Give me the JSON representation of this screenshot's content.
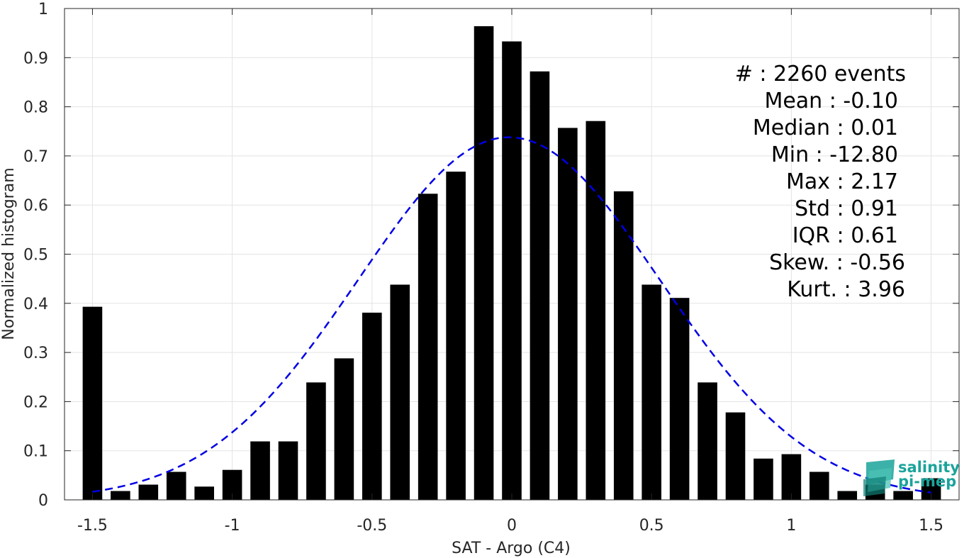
{
  "chart_data": {
    "type": "bar",
    "xlabel": "SAT - Argo (C4)",
    "ylabel": "Normalized histogram",
    "xlim": [
      -1.6,
      1.6
    ],
    "ylim": [
      0,
      1
    ],
    "xticks": [
      "-1.5",
      "-1",
      "-0.5",
      "0",
      "0.5",
      "1",
      "1.5"
    ],
    "xtick_values": [
      -1.5,
      -1,
      -0.5,
      0,
      0.5,
      1,
      1.5
    ],
    "yticks": [
      "0",
      "0.1",
      "0.2",
      "0.3",
      "0.4",
      "0.5",
      "0.6",
      "0.7",
      "0.8",
      "0.9",
      "1"
    ],
    "ytick_values": [
      0,
      0.1,
      0.2,
      0.3,
      0.4,
      0.5,
      0.6,
      0.7,
      0.8,
      0.9,
      1
    ],
    "grid": true,
    "bin_width": 0.1,
    "bar_color": "#000000",
    "bins": [
      {
        "x": -1.5,
        "value": 0.393
      },
      {
        "x": -1.4,
        "value": 0.018
      },
      {
        "x": -1.3,
        "value": 0.031
      },
      {
        "x": -1.2,
        "value": 0.057
      },
      {
        "x": -1.1,
        "value": 0.027
      },
      {
        "x": -1.0,
        "value": 0.061
      },
      {
        "x": -0.9,
        "value": 0.119
      },
      {
        "x": -0.8,
        "value": 0.119
      },
      {
        "x": -0.7,
        "value": 0.239
      },
      {
        "x": -0.6,
        "value": 0.288
      },
      {
        "x": -0.5,
        "value": 0.381
      },
      {
        "x": -0.4,
        "value": 0.438
      },
      {
        "x": -0.3,
        "value": 0.623
      },
      {
        "x": -0.2,
        "value": 0.668
      },
      {
        "x": -0.1,
        "value": 0.964
      },
      {
        "x": 0.0,
        "value": 0.933
      },
      {
        "x": 0.1,
        "value": 0.872
      },
      {
        "x": 0.2,
        "value": 0.757
      },
      {
        "x": 0.3,
        "value": 0.771
      },
      {
        "x": 0.4,
        "value": 0.628
      },
      {
        "x": 0.5,
        "value": 0.438
      },
      {
        "x": 0.6,
        "value": 0.411
      },
      {
        "x": 0.7,
        "value": 0.239
      },
      {
        "x": 0.8,
        "value": 0.178
      },
      {
        "x": 0.9,
        "value": 0.084
      },
      {
        "x": 1.0,
        "value": 0.093
      },
      {
        "x": 1.1,
        "value": 0.057
      },
      {
        "x": 1.2,
        "value": 0.018
      },
      {
        "x": 1.3,
        "value": 0.031
      },
      {
        "x": 1.4,
        "value": 0.018
      },
      {
        "x": 1.5,
        "value": 0.044
      }
    ],
    "fit_curve": {
      "type": "gaussian",
      "style": "dashed",
      "color": "#0000e6",
      "mean": -0.01,
      "std": 0.54,
      "peak": 0.738,
      "x_range": [
        -1.5,
        1.5
      ]
    },
    "stats": [
      "#  : 2260 events",
      "Mean : -0.10",
      "Median : 0.01",
      "Min : -12.80",
      "Max : 2.17",
      "Std : 0.91",
      "IQR : 0.61",
      "Skew. : -0.56",
      "Kurt. : 3.96"
    ]
  },
  "logo": {
    "line1": "salinity",
    "line2": "pi-mep",
    "color": "#1aa39a",
    "icon_name": "salinity-pimep-logo-icon"
  }
}
